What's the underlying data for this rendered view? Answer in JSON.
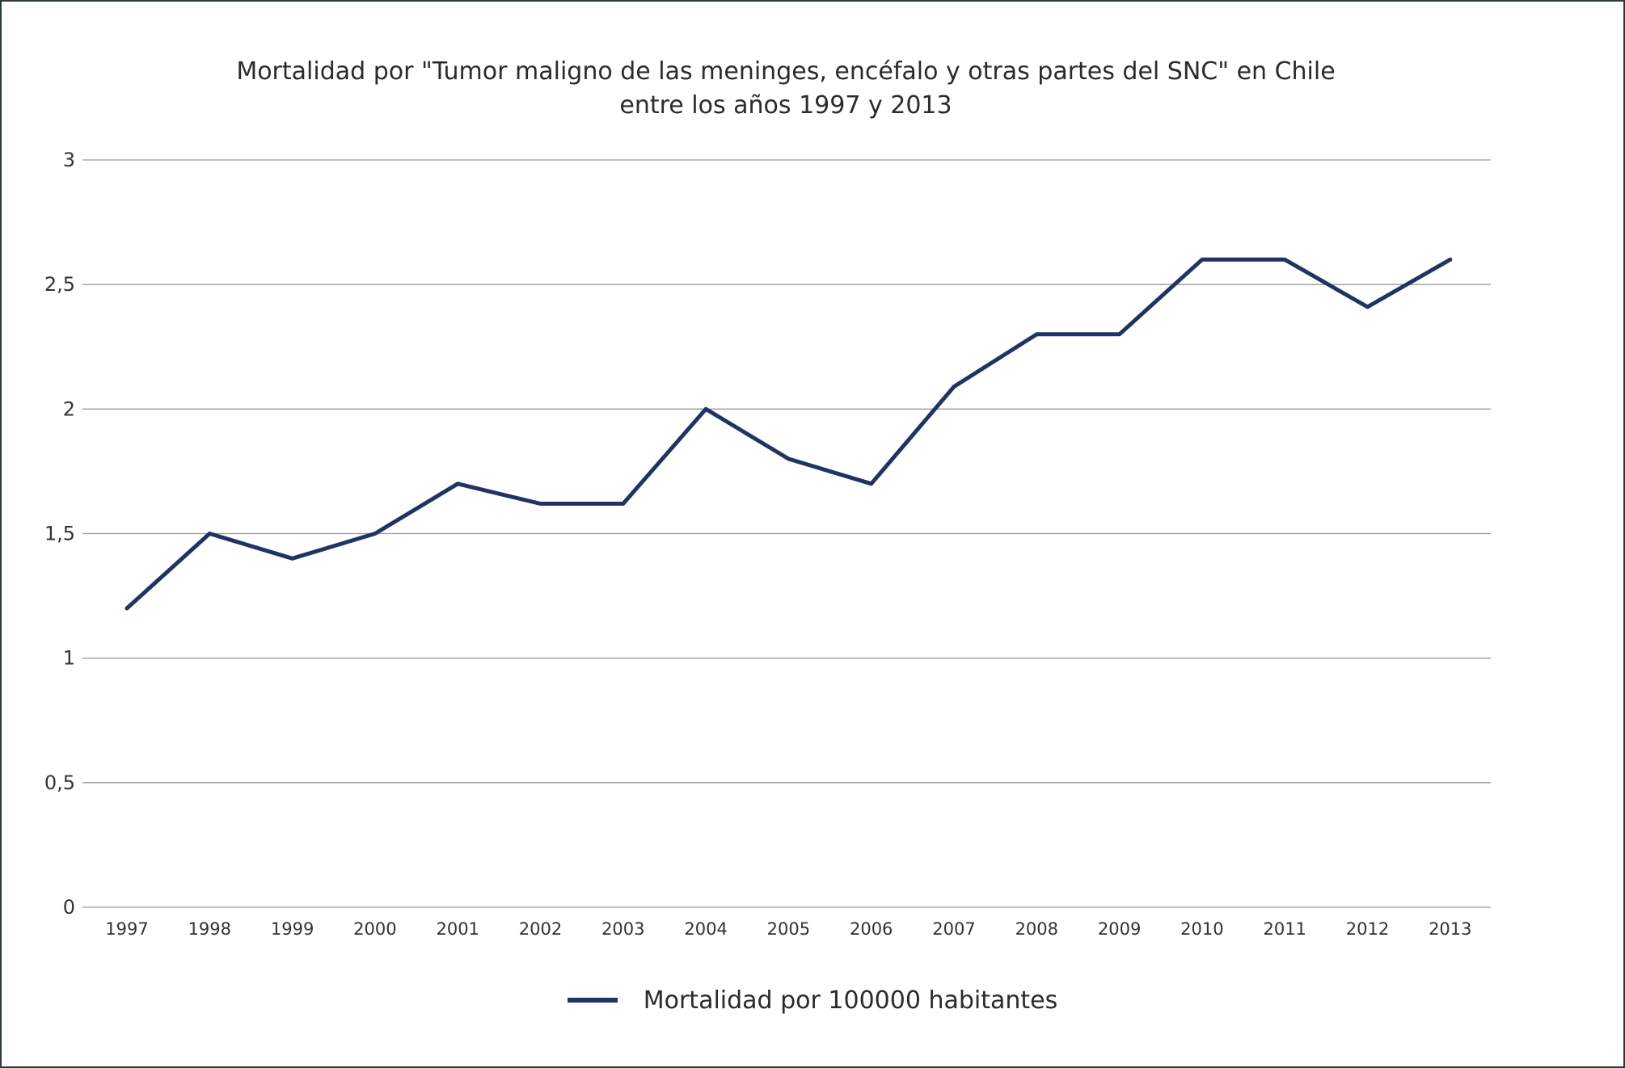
{
  "chart_data": {
    "type": "line",
    "title": "Mortalidad por \"Tumor maligno de las meninges, encéfalo y otras partes del SNC\" en Chile",
    "subtitle": "entre los años 1997 y 2013",
    "xlabel": "",
    "ylabel": "",
    "categories": [
      "1997",
      "1998",
      "1999",
      "2000",
      "2001",
      "2002",
      "2003",
      "2004",
      "2005",
      "2006",
      "2007",
      "2008",
      "2009",
      "2010",
      "2011",
      "2012",
      "2013"
    ],
    "series": [
      {
        "name": "Mortalidad por 100000 habitantes",
        "color": "#1f3462",
        "values": [
          1.2,
          1.5,
          1.4,
          1.5,
          1.7,
          1.62,
          1.62,
          2.0,
          1.8,
          1.7,
          2.09,
          2.3,
          2.3,
          2.6,
          2.6,
          2.41,
          2.6
        ]
      }
    ],
    "ylim": [
      0,
      3
    ],
    "yticks": [
      {
        "value": 0,
        "label": "0"
      },
      {
        "value": 0.5,
        "label": "0,5"
      },
      {
        "value": 1,
        "label": "1"
      },
      {
        "value": 1.5,
        "label": "1,5"
      },
      {
        "value": 2,
        "label": "2"
      },
      {
        "value": 2.5,
        "label": "2,5"
      },
      {
        "value": 3,
        "label": "3"
      }
    ],
    "grid": true,
    "legend_position": "bottom"
  }
}
